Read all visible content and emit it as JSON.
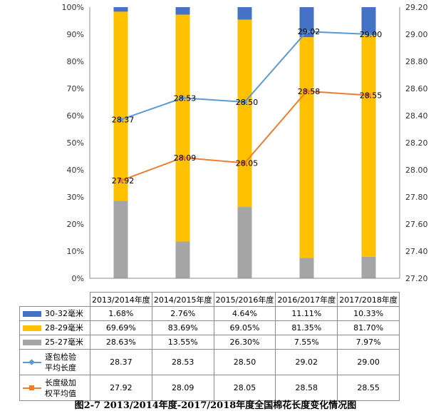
{
  "caption": "图2-7 2013/2014年度-2017/2018年度全国棉花长度变化情况图",
  "chart_data": {
    "type": "bar",
    "categories": [
      "2013/2014年度",
      "2014/2015年度",
      "2015/2016年度",
      "2016/2017年度",
      "2017/2018年度"
    ],
    "y_left": {
      "min": 0,
      "max": 100,
      "step": 10,
      "unit": "%",
      "ticks": [
        "0%",
        "10%",
        "20%",
        "30%",
        "40%",
        "50%",
        "60%",
        "70%",
        "80%",
        "90%",
        "100%"
      ]
    },
    "y_right": {
      "min": 27.2,
      "max": 29.2,
      "step": 0.2,
      "ticks": [
        "27.20",
        "27.40",
        "27.60",
        "27.80",
        "28.00",
        "28.20",
        "28.40",
        "28.60",
        "28.80",
        "29.00",
        "29.20"
      ]
    },
    "grid": false,
    "legend": "data-table",
    "series": [
      {
        "name": "30-32毫米",
        "kind": "stacked-bar",
        "axis": "left",
        "color": "#4472c4",
        "values": [
          1.68,
          2.76,
          4.64,
          11.11,
          10.33
        ],
        "labels": [
          "1.68%",
          "2.76%",
          "4.64%",
          "11.11%",
          "10.33%"
        ]
      },
      {
        "name": "28-29毫米",
        "kind": "stacked-bar",
        "axis": "left",
        "color": "#ffc000",
        "values": [
          69.69,
          83.69,
          69.05,
          81.35,
          81.7
        ],
        "labels": [
          "69.69%",
          "83.69%",
          "69.05%",
          "81.35%",
          "81.70%"
        ]
      },
      {
        "name": "25-27毫米",
        "kind": "stacked-bar",
        "axis": "left",
        "color": "#a5a5a5",
        "values": [
          28.63,
          13.55,
          26.3,
          7.55,
          7.97
        ],
        "labels": [
          "28.63%",
          "13.55%",
          "26.30%",
          "7.55%",
          "7.97%"
        ]
      },
      {
        "name": "逐包检验平均长度",
        "name_lines": [
          "逐包检验",
          "平均长度"
        ],
        "kind": "line",
        "axis": "right",
        "color": "#5b9bd5",
        "marker": "diamond",
        "values": [
          28.37,
          28.53,
          28.5,
          29.02,
          29.0
        ],
        "labels": [
          "28.37",
          "28.53",
          "28.50",
          "29.02",
          "29.00"
        ]
      },
      {
        "name": "长度级加权平均值",
        "name_lines": [
          "长度级加",
          "权平均值"
        ],
        "kind": "line",
        "axis": "right",
        "color": "#ed7d31",
        "marker": "square",
        "values": [
          27.92,
          28.09,
          28.05,
          28.58,
          28.55
        ],
        "labels": [
          "27.92",
          "28.09",
          "28.05",
          "28.58",
          "28.55"
        ]
      }
    ]
  }
}
